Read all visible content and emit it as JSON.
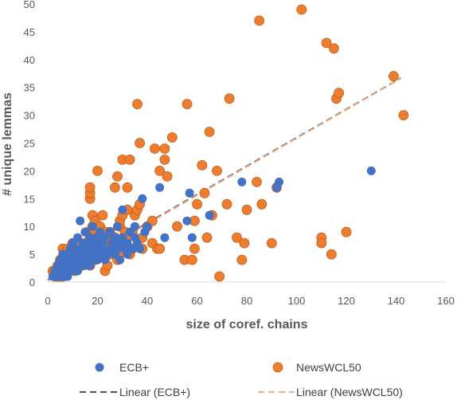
{
  "chart_data": {
    "type": "scatter",
    "title": "",
    "xlabel": "size of coref. chains",
    "ylabel": "# unique lemmas",
    "xlim": [
      0,
      160
    ],
    "ylim": [
      0,
      50
    ],
    "x_ticks": [
      0,
      20,
      40,
      60,
      80,
      100,
      120,
      140,
      160
    ],
    "y_ticks": [
      0,
      5,
      10,
      15,
      20,
      25,
      30,
      35,
      40,
      45,
      50
    ],
    "grid": false,
    "legend_position": "bottom",
    "series": [
      {
        "name": "ECB+",
        "color": "#4472C4",
        "points": [
          [
            2,
            1
          ],
          [
            3,
            1
          ],
          [
            3,
            2
          ],
          [
            4,
            1
          ],
          [
            4,
            2
          ],
          [
            4,
            3
          ],
          [
            5,
            1
          ],
          [
            5,
            2
          ],
          [
            5,
            4
          ],
          [
            6,
            1
          ],
          [
            6,
            2
          ],
          [
            6,
            3
          ],
          [
            6,
            5
          ],
          [
            7,
            1
          ],
          [
            7,
            2
          ],
          [
            7,
            3
          ],
          [
            7,
            4
          ],
          [
            8,
            1
          ],
          [
            8,
            2
          ],
          [
            8,
            3
          ],
          [
            8,
            5
          ],
          [
            9,
            2
          ],
          [
            9,
            4
          ],
          [
            9,
            6
          ],
          [
            10,
            2
          ],
          [
            10,
            3
          ],
          [
            10,
            5
          ],
          [
            10,
            7
          ],
          [
            11,
            3
          ],
          [
            11,
            4
          ],
          [
            11,
            6
          ],
          [
            12,
            2
          ],
          [
            12,
            5
          ],
          [
            12,
            8
          ],
          [
            13,
            3
          ],
          [
            13,
            6
          ],
          [
            13,
            11
          ],
          [
            14,
            4
          ],
          [
            14,
            7
          ],
          [
            15,
            3
          ],
          [
            15,
            5
          ],
          [
            15,
            9
          ],
          [
            16,
            4
          ],
          [
            16,
            6
          ],
          [
            16,
            7
          ],
          [
            17,
            3
          ],
          [
            17,
            5
          ],
          [
            17,
            8
          ],
          [
            18,
            4
          ],
          [
            18,
            6
          ],
          [
            18,
            10
          ],
          [
            19,
            5
          ],
          [
            19,
            7
          ],
          [
            20,
            4
          ],
          [
            20,
            6
          ],
          [
            20,
            8
          ],
          [
            21,
            5
          ],
          [
            21,
            9
          ],
          [
            22,
            6
          ],
          [
            22,
            7
          ],
          [
            23,
            4
          ],
          [
            23,
            8
          ],
          [
            24,
            5
          ],
          [
            25,
            6
          ],
          [
            25,
            9
          ],
          [
            26,
            7
          ],
          [
            27,
            5
          ],
          [
            27,
            8
          ],
          [
            28,
            6
          ],
          [
            28,
            10
          ],
          [
            29,
            4
          ],
          [
            29,
            7
          ],
          [
            30,
            13
          ],
          [
            30,
            8
          ],
          [
            31,
            6
          ],
          [
            32,
            5
          ],
          [
            32,
            7
          ],
          [
            33,
            9
          ],
          [
            34,
            6
          ],
          [
            35,
            8
          ],
          [
            35,
            10
          ],
          [
            36,
            7
          ],
          [
            37,
            6
          ],
          [
            38,
            15
          ],
          [
            39,
            9
          ],
          [
            40,
            10
          ],
          [
            45,
            17
          ],
          [
            47,
            8
          ],
          [
            56,
            11
          ],
          [
            57,
            16
          ],
          [
            58,
            8
          ],
          [
            65,
            12
          ],
          [
            78,
            18
          ],
          [
            92,
            17
          ],
          [
            93,
            18
          ],
          [
            130,
            20
          ]
        ]
      },
      {
        "name": "NewsWCL50",
        "color": "#ED7D31",
        "points": [
          [
            2,
            2
          ],
          [
            3,
            1
          ],
          [
            3,
            2
          ],
          [
            4,
            1
          ],
          [
            4,
            3
          ],
          [
            5,
            1
          ],
          [
            5,
            2
          ],
          [
            5,
            4
          ],
          [
            6,
            1
          ],
          [
            6,
            3
          ],
          [
            6,
            6
          ],
          [
            7,
            2
          ],
          [
            7,
            4
          ],
          [
            7,
            5
          ],
          [
            8,
            2
          ],
          [
            8,
            3
          ],
          [
            8,
            6
          ],
          [
            9,
            2
          ],
          [
            9,
            4
          ],
          [
            9,
            5
          ],
          [
            10,
            3
          ],
          [
            10,
            6
          ],
          [
            10,
            7
          ],
          [
            11,
            2
          ],
          [
            11,
            4
          ],
          [
            11,
            5
          ],
          [
            12,
            3
          ],
          [
            12,
            7
          ],
          [
            13,
            4
          ],
          [
            13,
            6
          ],
          [
            13,
            7
          ],
          [
            14,
            3
          ],
          [
            14,
            5
          ],
          [
            15,
            4
          ],
          [
            15,
            7
          ],
          [
            16,
            5
          ],
          [
            16,
            6
          ],
          [
            16,
            9
          ],
          [
            17,
            3
          ],
          [
            17,
            4
          ],
          [
            17,
            6
          ],
          [
            17,
            8
          ],
          [
            17,
            15
          ],
          [
            17,
            16
          ],
          [
            17,
            17
          ],
          [
            18,
            5
          ],
          [
            18,
            6
          ],
          [
            18,
            10
          ],
          [
            18,
            12
          ],
          [
            19,
            4
          ],
          [
            19,
            7
          ],
          [
            19,
            9
          ],
          [
            19,
            11
          ],
          [
            20,
            6
          ],
          [
            20,
            8
          ],
          [
            20,
            20
          ],
          [
            21,
            5
          ],
          [
            21,
            7
          ],
          [
            21,
            10
          ],
          [
            22,
            6
          ],
          [
            22,
            8
          ],
          [
            22,
            12
          ],
          [
            23,
            2
          ],
          [
            23,
            7
          ],
          [
            23,
            9
          ],
          [
            24,
            3
          ],
          [
            24,
            6
          ],
          [
            24,
            8
          ],
          [
            25,
            5
          ],
          [
            25,
            9
          ],
          [
            26,
            7
          ],
          [
            27,
            6
          ],
          [
            27,
            8
          ],
          [
            27,
            17
          ],
          [
            28,
            4
          ],
          [
            28,
            7
          ],
          [
            28,
            19
          ],
          [
            29,
            5
          ],
          [
            29,
            10
          ],
          [
            29,
            11
          ],
          [
            30,
            6
          ],
          [
            30,
            12
          ],
          [
            30,
            22
          ],
          [
            31,
            7
          ],
          [
            31,
            9
          ],
          [
            32,
            8
          ],
          [
            32,
            13
          ],
          [
            32,
            17
          ],
          [
            33,
            22
          ],
          [
            33,
            5
          ],
          [
            34,
            6
          ],
          [
            34,
            9
          ],
          [
            35,
            12
          ],
          [
            36,
            13
          ],
          [
            36,
            32
          ],
          [
            37,
            14
          ],
          [
            37,
            25
          ],
          [
            38,
            6
          ],
          [
            38,
            8
          ],
          [
            40,
            10
          ],
          [
            42,
            11
          ],
          [
            42,
            7
          ],
          [
            43,
            24
          ],
          [
            44,
            6
          ],
          [
            45,
            20
          ],
          [
            45,
            6
          ],
          [
            47,
            22
          ],
          [
            47,
            24
          ],
          [
            48,
            19
          ],
          [
            50,
            26
          ],
          [
            52,
            10
          ],
          [
            55,
            4
          ],
          [
            56,
            32
          ],
          [
            58,
            4
          ],
          [
            59,
            6
          ],
          [
            59,
            11
          ],
          [
            60,
            14
          ],
          [
            62,
            21
          ],
          [
            63,
            16
          ],
          [
            64,
            8
          ],
          [
            65,
            27
          ],
          [
            66,
            12
          ],
          [
            68,
            20
          ],
          [
            69,
            1
          ],
          [
            72,
            14
          ],
          [
            73,
            33
          ],
          [
            76,
            8
          ],
          [
            78,
            4
          ],
          [
            79,
            7
          ],
          [
            80,
            13
          ],
          [
            84,
            18
          ],
          [
            85,
            47
          ],
          [
            86,
            14
          ],
          [
            90,
            7
          ],
          [
            92,
            17
          ],
          [
            102,
            49
          ],
          [
            110,
            8
          ],
          [
            110,
            7
          ],
          [
            112,
            43
          ],
          [
            114,
            5
          ],
          [
            115,
            42
          ],
          [
            116,
            33
          ],
          [
            117,
            34
          ],
          [
            120,
            9
          ],
          [
            139,
            37
          ],
          [
            143,
            30
          ]
        ]
      }
    ],
    "trendlines": [
      {
        "name": "Linear (ECB+)",
        "color": "#44546A",
        "intercept": 0.4,
        "slope": 0.2555,
        "x_range": [
          0,
          142
        ]
      },
      {
        "name": "Linear (NewsWCL50)",
        "color": "#F4B183",
        "intercept": 0.2,
        "slope": 0.2565,
        "x_range": [
          0,
          142
        ]
      }
    ]
  }
}
